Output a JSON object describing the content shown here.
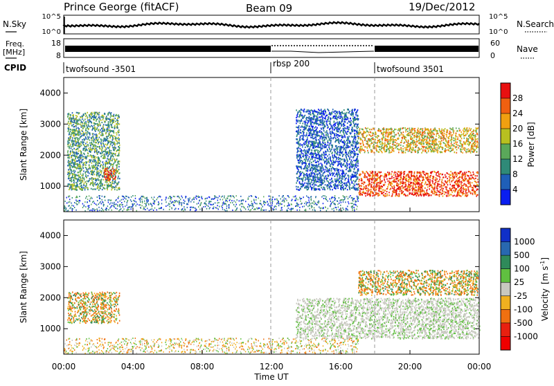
{
  "header": {
    "station": "Prince George (fitACF)",
    "beam": "Beam 09",
    "date": "19/Dec/2012"
  },
  "top_panel": {
    "left_label": "N.Sky",
    "right_label": "N.Search",
    "left_ticks": [
      "10^5",
      "10^0"
    ],
    "right_ticks": [
      "10^5",
      "10^0"
    ]
  },
  "freq_panel": {
    "left_label_1": "Freq.",
    "left_label_2": "[MHz]",
    "right_label": "Nave",
    "left_ticks": [
      "18",
      "8"
    ],
    "right_ticks": [
      "60",
      "0"
    ]
  },
  "cpid": {
    "label": "CPID",
    "segments": [
      {
        "name": "twofsound -3501",
        "start_hour": 0
      },
      {
        "name": "rbsp 200",
        "start_hour": 12
      },
      {
        "name": "twofsound 3501",
        "start_hour": 18
      }
    ]
  },
  "x_axis": {
    "label": "Time UT",
    "ticks": [
      "00:00",
      "04:00",
      "08:00",
      "12:00",
      "16:00",
      "20:00",
      "00:00"
    ]
  },
  "power_panel": {
    "ylabel": "Slant Range [km]",
    "cbar_label": "Power [dB]",
    "cbar_ticks": [
      "4",
      "8",
      "12",
      "16",
      "20",
      "24",
      "28"
    ],
    "cbar_colors": [
      "#0a1ef0",
      "#1f5fb8",
      "#2f8a78",
      "#5aa85a",
      "#b8c020",
      "#f0a010",
      "#f06010",
      "#e81010"
    ],
    "yticks": [
      "1000",
      "2000",
      "3000",
      "4000"
    ]
  },
  "velocity_panel": {
    "ylabel": "Slant Range [km]",
    "cbar_label": "Velocity",
    "cbar_unit": "[m s",
    "cbar_unit_exp": "-1",
    "cbar_unit_end": "]",
    "cbar_ticks": [
      "1000",
      "500",
      "100",
      "25",
      "-25",
      "-100",
      "-500",
      "-1000"
    ],
    "cbar_colors": [
      "#1030c8",
      "#2868b0",
      "#2f8a5a",
      "#60c040",
      "#c8c8c0",
      "#f0b020",
      "#f07010",
      "#e82010",
      "#f00000"
    ],
    "yticks": [
      "1000",
      "2000",
      "3000",
      "4000"
    ]
  },
  "chart_data": {
    "type": "heatmap",
    "x_range_hours": [
      0,
      24
    ],
    "y_range_km": [
      180,
      4500
    ],
    "regions": [
      {
        "panel": "power",
        "t0": 0.2,
        "t1": 3.2,
        "r0": 900,
        "r1": 3400,
        "value": 12
      },
      {
        "panel": "power",
        "t0": 2.3,
        "t1": 3.0,
        "r0": 1200,
        "r1": 1600,
        "value": 26
      },
      {
        "panel": "power",
        "t0": 13.4,
        "t1": 17.0,
        "r0": 900,
        "r1": 3500,
        "value": 8
      },
      {
        "panel": "power",
        "t0": 17.0,
        "t1": 23.9,
        "r0": 700,
        "r1": 1500,
        "value": 26
      },
      {
        "panel": "power",
        "t0": 17.0,
        "t1": 23.9,
        "r0": 2100,
        "r1": 2900,
        "value": 18
      },
      {
        "panel": "velocity",
        "t0": 0.2,
        "t1": 3.2,
        "r0": 1200,
        "r1": 2200,
        "value": -300
      },
      {
        "panel": "velocity",
        "t0": 13.4,
        "t1": 24.0,
        "r0": 700,
        "r1": 2000,
        "value": 0
      },
      {
        "panel": "velocity",
        "t0": 17.0,
        "t1": 23.9,
        "r0": 2100,
        "r1": 2900,
        "value": -300
      }
    ]
  }
}
